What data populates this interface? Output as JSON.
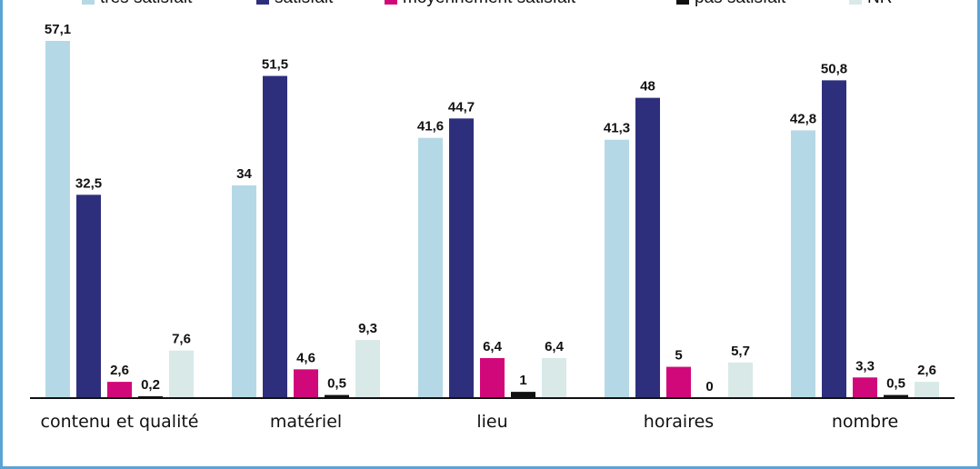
{
  "chart_data": {
    "type": "bar",
    "categories": [
      "contenu et qualité",
      "matériel",
      "lieu",
      "horaires",
      "nombre"
    ],
    "series": [
      {
        "name": "très satisfait",
        "color": "#b5d8e6",
        "values": [
          57.1,
          34,
          41.6,
          41.3,
          42.8
        ],
        "labels": [
          "57,1",
          "34",
          "41,6",
          "41,3",
          "42,8"
        ]
      },
      {
        "name": "satisfait",
        "color": "#2e2f7c",
        "values": [
          32.5,
          51.5,
          44.7,
          48,
          50.8
        ],
        "labels": [
          "32,5",
          "51,5",
          "44,7",
          "48",
          "50,8"
        ]
      },
      {
        "name": "moyennement satisfait",
        "color": "#d1087a",
        "values": [
          2.6,
          4.6,
          6.4,
          5,
          3.3
        ],
        "labels": [
          "2,6",
          "4,6",
          "6,4",
          "5",
          "3,3"
        ]
      },
      {
        "name": "pas satisfait",
        "color": "#111111",
        "values": [
          0.2,
          0.5,
          1,
          0,
          0.5
        ],
        "labels": [
          "0,2",
          "0,5",
          "1",
          "0",
          "0,5"
        ]
      },
      {
        "name": "NR",
        "color": "#d8e9e8",
        "values": [
          7.6,
          9.3,
          6.4,
          5.7,
          2.6
        ],
        "labels": [
          "7,6",
          "9,3",
          "6,4",
          "5,7",
          "2,6"
        ]
      }
    ],
    "ylim": [
      0,
      57.1
    ],
    "grid": false,
    "legend_position": "top"
  }
}
